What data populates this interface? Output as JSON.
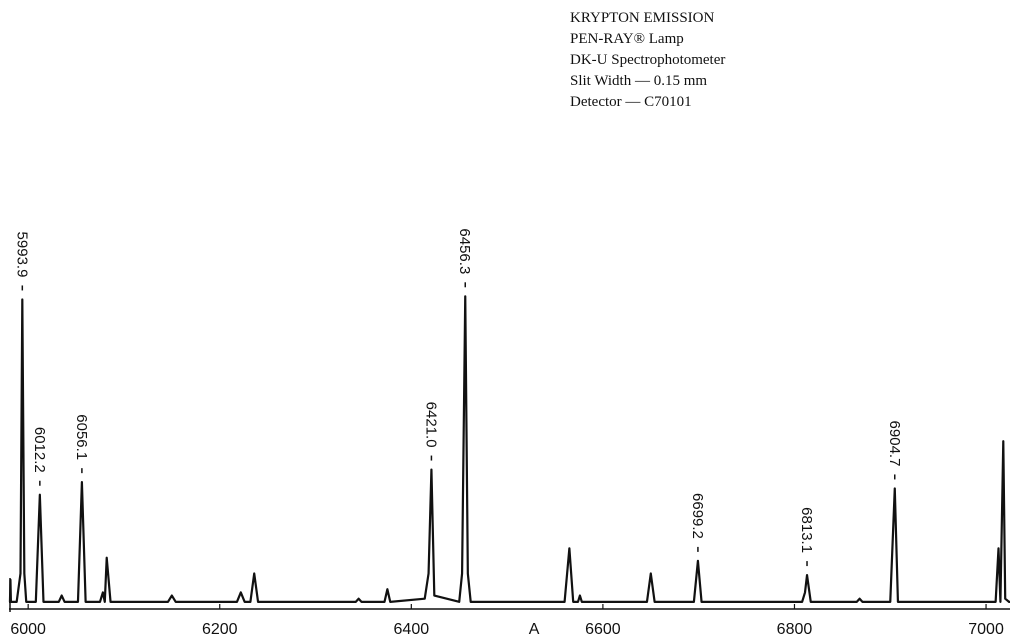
{
  "chart_data": {
    "type": "line",
    "title_lines": [
      "KRYPTON EMISSION",
      "PEN-RAY® Lamp",
      "DK-U Spectrophotometer",
      "Slit Width — 0.15 mm",
      "Detector — C70101"
    ],
    "x_label": "A",
    "xlim": [
      5980,
      7025
    ],
    "xticks": [
      6000,
      6200,
      6400,
      6600,
      6800,
      7000
    ],
    "ylim": [
      0,
      100
    ],
    "series": [
      {
        "color": "#111111",
        "x": [
          5980,
          5981,
          5981.5,
          5982,
          5988,
          5992,
          5993.9,
          5996,
          5998,
          6008,
          6012.2,
          6016,
          6032,
          6035,
          6038,
          6052,
          6056.1,
          6060,
          6075,
          6078,
          6080,
          6082,
          6086,
          6146,
          6150,
          6154,
          6218,
          6222,
          6226,
          6232,
          6236,
          6240,
          6342,
          6345,
          6348,
          6372,
          6375,
          6378,
          6414,
          6418,
          6421.0,
          6424,
          6450,
          6453,
          6456.3,
          6459,
          6462,
          6560,
          6565,
          6569,
          6574,
          6576,
          6578,
          6646,
          6650,
          6654,
          6695,
          6699.2,
          6703,
          6808,
          6811,
          6813.1,
          6817,
          6865,
          6868,
          6871,
          6900,
          6904.7,
          6908,
          7010,
          7013,
          7015,
          7018,
          7020,
          7024,
          7025
        ],
        "values": [
          1,
          1,
          8,
          1,
          1,
          10,
          97,
          10,
          1,
          1,
          35,
          1,
          1,
          3,
          1,
          1,
          39,
          1,
          1,
          4,
          1,
          15,
          1,
          1,
          3,
          1,
          1,
          4,
          1,
          1,
          10,
          1,
          1,
          2,
          1,
          1,
          5,
          1,
          2,
          10,
          43,
          3,
          1,
          10,
          98,
          10,
          1,
          1,
          18,
          1,
          1,
          3,
          1,
          1,
          10,
          1,
          1,
          14,
          1,
          1,
          4,
          9.5,
          1,
          1,
          2,
          1,
          1,
          37,
          1,
          1,
          18,
          1,
          52,
          2,
          1,
          1
        ]
      }
    ],
    "peak_labels": [
      {
        "value": 5993.9,
        "label": "5993.9"
      },
      {
        "value": 6012.2,
        "label": "6012.2"
      },
      {
        "value": 6056.1,
        "label": "6056.1"
      },
      {
        "value": 6421.0,
        "label": "6421.0"
      },
      {
        "value": 6456.3,
        "label": "6456.3"
      },
      {
        "value": 6699.2,
        "label": "6699.2"
      },
      {
        "value": 6813.1,
        "label": "6813.1"
      },
      {
        "value": 6904.7,
        "label": "6904.7"
      }
    ]
  }
}
